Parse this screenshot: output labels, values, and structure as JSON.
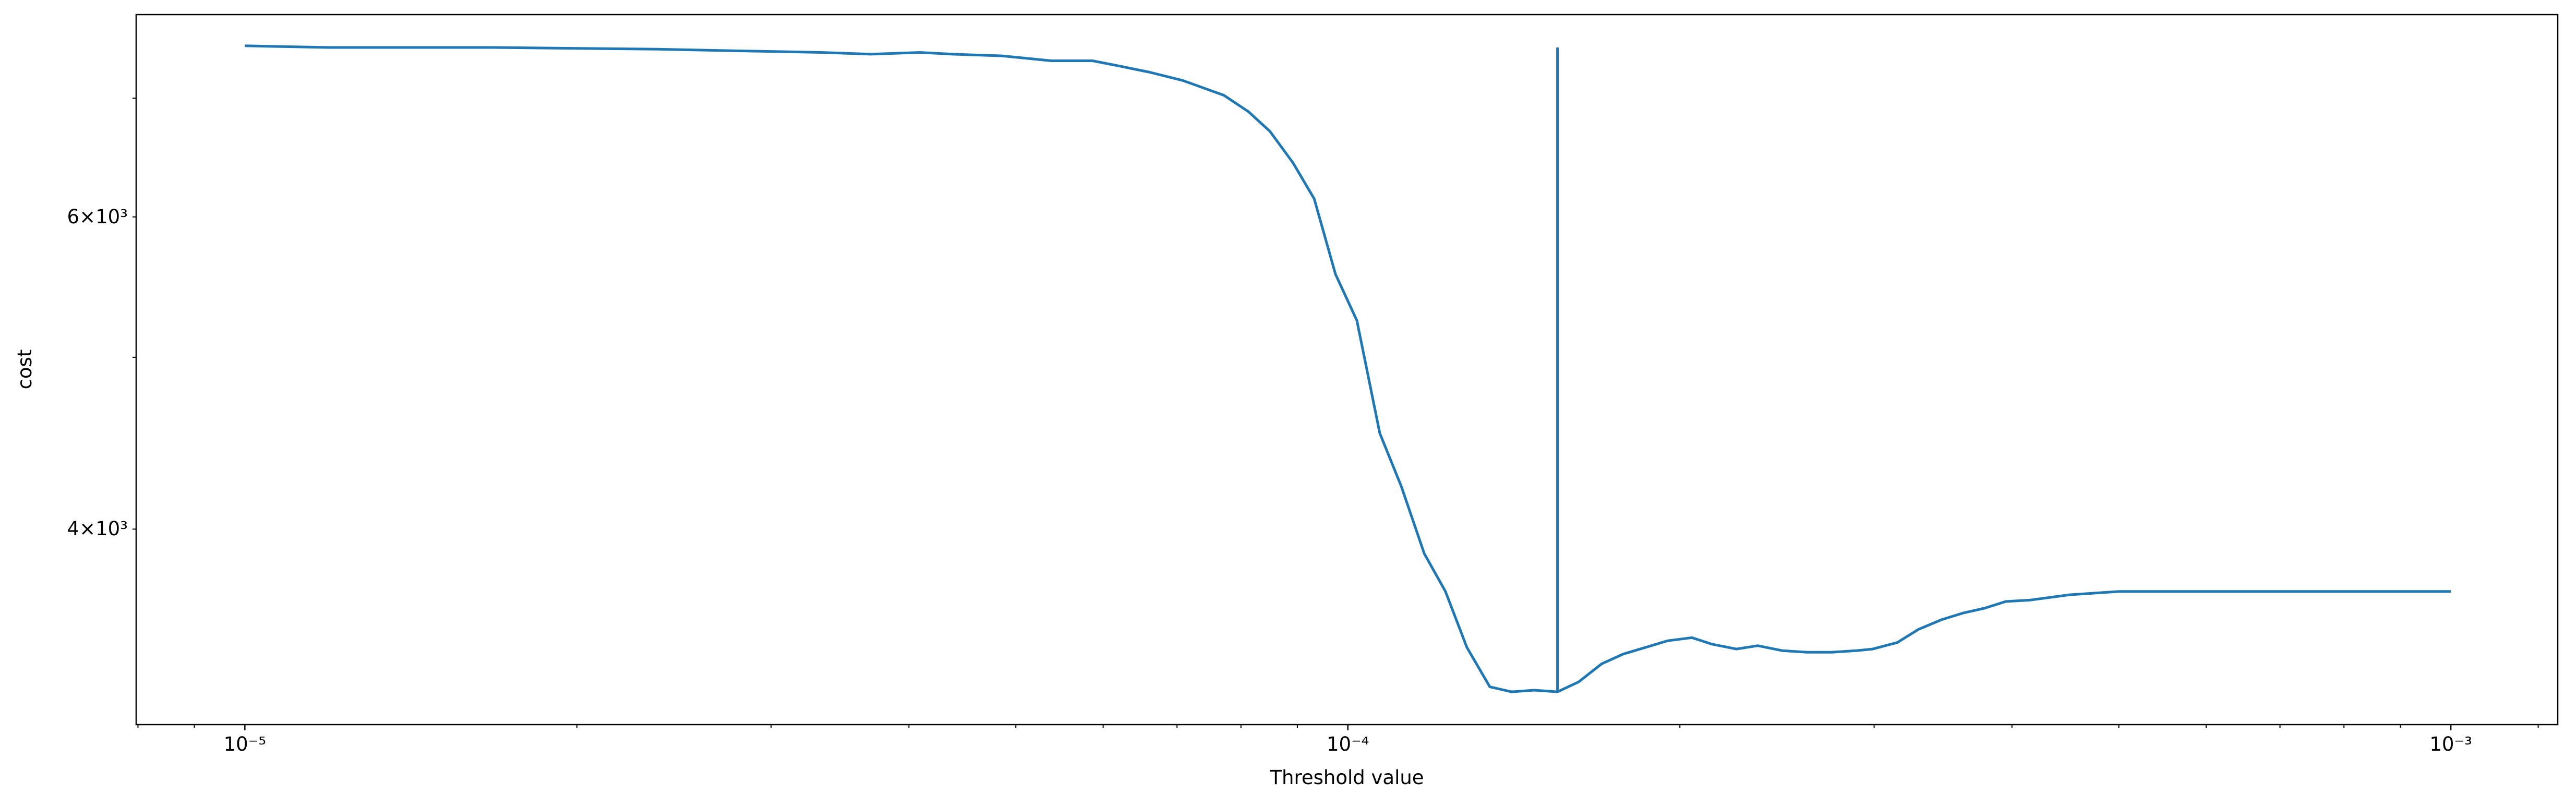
{
  "chart_data": {
    "type": "line",
    "xlabel": "Threshold value",
    "ylabel": "cost",
    "xscale": "log",
    "yscale": "log",
    "xlim": [
      7.97e-06,
      0.00125
    ],
    "ylim": [
      3103,
      7803
    ],
    "xticks": [
      {
        "value": 1e-05,
        "label": "10⁻⁵"
      },
      {
        "value": 0.0001,
        "label": "10⁻⁴"
      },
      {
        "value": 0.001,
        "label": "10⁻³"
      }
    ],
    "xminorticks": [
      8e-06,
      9e-06,
      2e-05,
      3e-05,
      4e-05,
      5e-05,
      6e-05,
      7e-05,
      8e-05,
      9e-05,
      0.0002,
      0.0003,
      0.0004,
      0.0005,
      0.0006,
      0.0007,
      0.0008,
      0.0009,
      0.0012
    ],
    "yticks": [
      {
        "value": 4000,
        "label": "4×10³"
      },
      {
        "value": 6000,
        "label": "6×10³"
      }
    ],
    "yminorticks": [
      5000,
      7000
    ],
    "series": [
      {
        "color": "#1f77b4",
        "x": [
          1e-05,
          1.191e-05,
          1.679e-05,
          2.365e-05,
          2.807e-05,
          3.332e-05,
          3.693e-05,
          4.094e-05,
          4.384e-05,
          4.859e-05,
          5.385e-05,
          5.868e-05,
          6.177e-05,
          6.614e-05,
          7.085e-05,
          7.719e-05,
          8.128e-05,
          8.499e-05,
          8.916e-05,
          9.321e-05,
          9.745e-05,
          0.0001019,
          0.0001069,
          0.0001118,
          0.0001173,
          0.0001226,
          0.0001282,
          0.0001345,
          0.0001407,
          0.0001476,
          0.0001549,
          0.0001619,
          0.0001699,
          0.0001777,
          0.0001864,
          0.0001949,
          0.0002051,
          0.0002138,
          0.000225,
          0.0002353,
          0.0002477,
          0.0002608,
          0.0002746,
          0.000289,
          0.0002991,
          0.0003148,
          0.0003292,
          0.0003453,
          0.0003612,
          0.0003776,
          0.0003949,
          0.0004157,
          0.0004513,
          0.0005003,
          0.0006144,
          0.001
        ],
        "values": [
          7493,
          7477,
          7477,
          7460,
          7444,
          7429,
          7412,
          7429,
          7412,
          7396,
          7349,
          7349,
          7303,
          7240,
          7163,
          7027,
          6878,
          6705,
          6438,
          6143,
          5570,
          5245,
          4530,
          4229,
          3875,
          3689,
          3431,
          3259,
          3238,
          3245,
          3238,
          3280,
          3358,
          3401,
          3431,
          3460,
          3474,
          3445,
          3423,
          3438,
          3416,
          3409,
          3409,
          3416,
          3423,
          3452,
          3512,
          3556,
          3587,
          3609,
          3641,
          3648,
          3673,
          3689,
          3689,
          3689
        ]
      },
      {
        "color": "#1f77b4",
        "x": [
          0.0001549,
          0.0001549
        ],
        "values": [
          3238,
          7477
        ]
      }
    ]
  }
}
